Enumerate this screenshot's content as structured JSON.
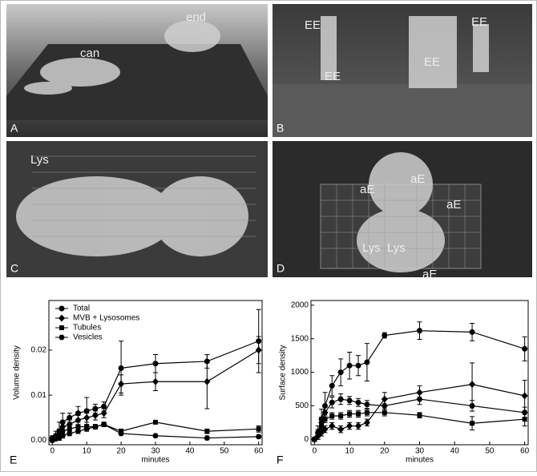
{
  "panels": [
    {
      "letter": "A",
      "labels": [
        "end",
        "can"
      ]
    },
    {
      "letter": "B",
      "labels": [
        "EE",
        "EE",
        "EE",
        "EE"
      ]
    },
    {
      "letter": "C",
      "labels": [
        "Lys"
      ]
    },
    {
      "letter": "D",
      "labels": [
        "aE",
        "aE",
        "aE",
        "Lys",
        "Lys",
        "aE"
      ]
    }
  ],
  "chart_data": [
    {
      "type": "line",
      "letter": "E",
      "x_label": "minutes",
      "y_label": "Volume density",
      "x": [
        0,
        1,
        2,
        3,
        5,
        7.5,
        10,
        12.5,
        15,
        20,
        30,
        45,
        60
      ],
      "xlim": [
        -1,
        61
      ],
      "xticks": [
        0,
        10,
        20,
        30,
        40,
        50,
        60
      ],
      "ylim": [
        -0.001,
        0.031
      ],
      "yticks": [
        {
          "value": 0,
          "label": "0.00"
        },
        0.01,
        0.02
      ],
      "legend": "upper left",
      "series": [
        {
          "name": "Total",
          "marker": "circle",
          "color": "#000000",
          "values": [
            0.0005,
            0.001,
            0.002,
            0.004,
            0.005,
            0.006,
            0.0065,
            0.007,
            0.0075,
            0.016,
            0.017,
            0.0175,
            0.022
          ],
          "errors": [
            0.0005,
            0.001,
            0.002,
            0.002,
            0.001,
            0.0015,
            0.003,
            0.001,
            0.001,
            0.006,
            0.002,
            0.0015,
            0.007
          ]
        },
        {
          "name": "MVB + Lysosomes",
          "marker": "diamond",
          "color": "#000000",
          "values": [
            0.0003,
            0.0008,
            0.0015,
            0.003,
            0.0035,
            0.0045,
            0.005,
            0.0055,
            0.006,
            0.0125,
            0.013,
            0.013,
            0.02
          ],
          "errors": [
            0.0003,
            0.0005,
            0.001,
            0.001,
            0.001,
            0.001,
            0.001,
            0.001,
            0.001,
            0.002,
            0.002,
            0.006,
            0.003
          ]
        },
        {
          "name": "Tubules",
          "marker": "square",
          "color": "#000000",
          "values": [
            0,
            0.0005,
            0.001,
            0.002,
            0.0025,
            0.003,
            0.003,
            0.003,
            0.0035,
            0.002,
            0.004,
            0.002,
            0.0025
          ],
          "errors": [
            0.0002,
            0.0005,
            0.001,
            0.001,
            0.0005,
            0.001,
            0.0005,
            0.0005,
            0.0005,
            0.0005,
            0.0003,
            0.0005,
            0.0007
          ]
        },
        {
          "name": "Vesicles",
          "marker": "hexagon",
          "color": "#000000",
          "values": [
            0,
            0.0003,
            0.0005,
            0.001,
            0.0015,
            0.002,
            0.0025,
            0.003,
            0.0035,
            0.0015,
            0.001,
            0.0005,
            0.0008
          ],
          "errors": [
            0.0002,
            0.0003,
            0.0005,
            0.0005,
            0.0005,
            0.0005,
            0.0005,
            0.0005,
            0.0005,
            0.0003,
            0.0003,
            0.0003,
            0.0003
          ]
        }
      ]
    },
    {
      "type": "line",
      "letter": "F",
      "x_label": "minutes",
      "y_label": "Surface density",
      "x": [
        0,
        1,
        2,
        3,
        5,
        7.5,
        10,
        12.5,
        15,
        20,
        30,
        45,
        60
      ],
      "xlim": [
        -1,
        61
      ],
      "xticks": [
        0,
        10,
        20,
        30,
        40,
        50,
        60
      ],
      "ylim": [
        -80,
        2070
      ],
      "yticks": [
        0,
        500,
        1000,
        1500,
        2000
      ],
      "series": [
        {
          "marker": "circle",
          "color": "#000000",
          "values": [
            0,
            100,
            300,
            500,
            800,
            1000,
            1100,
            1100,
            1150,
            1550,
            1620,
            1600,
            1350
          ],
          "errors": [
            30,
            100,
            150,
            200,
            150,
            200,
            200,
            150,
            280,
            40,
            130,
            130,
            180
          ]
        },
        {
          "marker": "diamond",
          "color": "#000000",
          "values": [
            0,
            50,
            100,
            150,
            200,
            150,
            200,
            200,
            250,
            600,
            700,
            820,
            650
          ],
          "errors": [
            20,
            50,
            50,
            50,
            50,
            50,
            50,
            50,
            50,
            100,
            100,
            320,
            230
          ]
        },
        {
          "marker": "square",
          "color": "#000000",
          "values": [
            0,
            80,
            200,
            300,
            350,
            350,
            380,
            380,
            400,
            400,
            360,
            240,
            300
          ],
          "errors": [
            20,
            50,
            50,
            50,
            50,
            50,
            50,
            50,
            50,
            50,
            40,
            100,
            100
          ]
        },
        {
          "marker": "hexagon",
          "color": "#000000",
          "values": [
            0,
            100,
            250,
            400,
            550,
            600,
            580,
            550,
            520,
            500,
            600,
            500,
            400
          ],
          "errors": [
            20,
            50,
            80,
            80,
            80,
            80,
            60,
            60,
            60,
            100,
            80,
            80,
            80
          ]
        }
      ]
    }
  ]
}
